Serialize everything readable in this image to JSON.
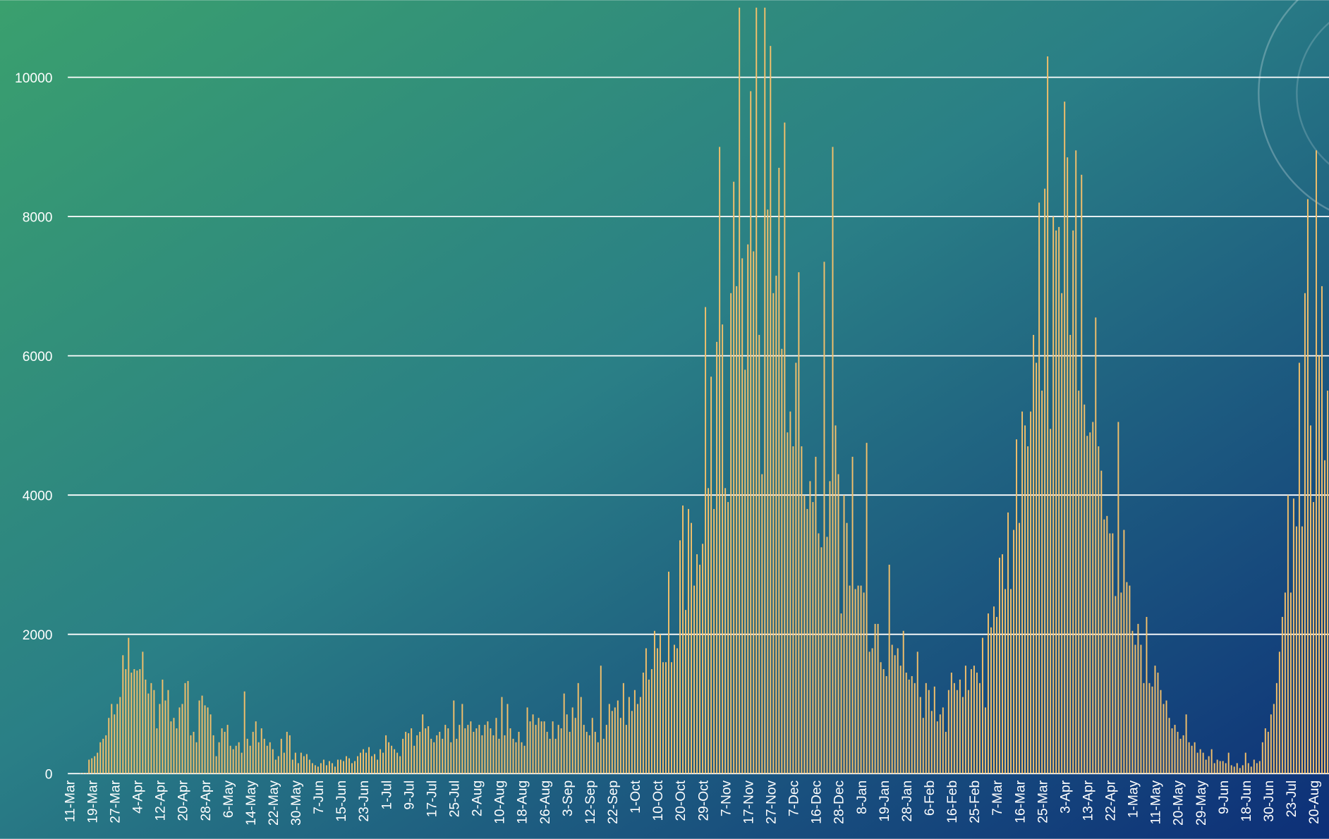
{
  "chart_data": {
    "type": "bar",
    "color": "#f4c06a",
    "grid": true,
    "ylim": [
      0,
      11100
    ],
    "yticks": [
      0,
      2000,
      4000,
      6000,
      8000,
      10000
    ],
    "categories": [
      "11-Mar",
      null,
      null,
      null,
      null,
      null,
      null,
      null,
      "19-Mar",
      null,
      null,
      null,
      null,
      null,
      null,
      null,
      "27-Mar",
      null,
      null,
      null,
      null,
      null,
      null,
      null,
      "4-Apr",
      null,
      null,
      null,
      null,
      null,
      null,
      null,
      "12-Apr",
      null,
      null,
      null,
      null,
      null,
      null,
      null,
      "20-Apr",
      null,
      null,
      null,
      null,
      null,
      null,
      null,
      "28-Apr",
      null,
      null,
      null,
      null,
      null,
      null,
      null,
      "6-May",
      null,
      null,
      null,
      null,
      null,
      null,
      null,
      "14-May",
      null,
      null,
      null,
      null,
      null,
      null,
      null,
      "22-May",
      null,
      null,
      null,
      null,
      null,
      null,
      null,
      "30-May",
      null,
      null,
      null,
      null,
      null,
      null,
      null,
      "7-Jun",
      null,
      null,
      null,
      null,
      null,
      null,
      null,
      "15-Jun",
      null,
      null,
      null,
      null,
      null,
      null,
      null,
      "23-Jun",
      null,
      null,
      null,
      null,
      null,
      null,
      null,
      "1-Jul",
      null,
      null,
      null,
      null,
      null,
      null,
      null,
      "9-Jul",
      null,
      null,
      null,
      null,
      null,
      null,
      null,
      "17-Jul",
      null,
      null,
      null,
      null,
      null,
      null,
      null,
      "25-Jul",
      null,
      null,
      null,
      null,
      null,
      null,
      null,
      "2-Aug",
      null,
      null,
      null,
      null,
      null,
      null,
      null,
      "10-Aug",
      null,
      null,
      null,
      null,
      null,
      null,
      null,
      "18-Aug",
      null,
      null,
      null,
      null,
      null,
      null,
      null,
      "26-Aug",
      null,
      null,
      null,
      null,
      null,
      null,
      null,
      "3-Sep",
      null,
      null,
      null,
      null,
      null,
      null,
      null,
      "12-Sep",
      null,
      null,
      null,
      null,
      null,
      null,
      null,
      "22-Sep",
      null,
      null,
      null,
      null,
      null,
      null,
      null,
      "1-Oct",
      null,
      null,
      null,
      null,
      null,
      null,
      null,
      "10-Oct",
      null,
      null,
      null,
      null,
      null,
      null,
      null,
      "20-Oct",
      null,
      null,
      null,
      null,
      null,
      null,
      null,
      "29-Oct",
      null,
      null,
      null,
      null,
      null,
      null,
      null,
      "7-Nov",
      null,
      null,
      null,
      null,
      null,
      null,
      null,
      "17-Nov",
      null,
      null,
      null,
      null,
      null,
      null,
      null,
      "27-Nov",
      null,
      null,
      null,
      null,
      null,
      null,
      null,
      "7-Dec",
      null,
      null,
      null,
      null,
      null,
      null,
      null,
      "16-Dec",
      null,
      null,
      null,
      null,
      null,
      null,
      null,
      "28-Dec",
      null,
      null,
      null,
      null,
      null,
      null,
      null,
      "8-Jan",
      null,
      null,
      null,
      null,
      null,
      null,
      null,
      "19-Jan",
      null,
      null,
      null,
      null,
      null,
      null,
      null,
      "28-Jan",
      null,
      null,
      null,
      null,
      null,
      null,
      null,
      "6-Feb",
      null,
      null,
      null,
      null,
      null,
      null,
      null,
      "16-Feb",
      null,
      null,
      null,
      null,
      null,
      null,
      null,
      "25-Feb",
      null,
      null,
      null,
      null,
      null,
      null,
      null,
      "7-Mar",
      null,
      null,
      null,
      null,
      null,
      null,
      null,
      "16-Mar",
      null,
      null,
      null,
      null,
      null,
      null,
      null,
      "25-Mar",
      null,
      null,
      null,
      null,
      null,
      null,
      null,
      "3-Apr",
      null,
      null,
      null,
      null,
      null,
      null,
      null,
      "13-Apr",
      null,
      null,
      null,
      null,
      null,
      null,
      null,
      "22-Apr",
      null,
      null,
      null,
      null,
      null,
      null,
      null,
      "1-May",
      null,
      null,
      null,
      null,
      null,
      null,
      null,
      "11-May",
      null,
      null,
      null,
      null,
      null,
      null,
      null,
      "20-May",
      null,
      null,
      null,
      null,
      null,
      null,
      null,
      "29-May",
      null,
      null,
      null,
      null,
      null,
      null,
      null,
      "9-Jun",
      null,
      null,
      null,
      null,
      null,
      null,
      null,
      "18-Jun",
      null,
      null,
      null,
      null,
      null,
      null,
      null,
      "30-Jun",
      null,
      null,
      null,
      null,
      null,
      null,
      null,
      "23-Jul",
      null,
      null,
      null,
      null,
      null,
      null,
      null,
      "20-Aug",
      null,
      null,
      null,
      null,
      null
    ],
    "values": [
      0,
      0,
      0,
      0,
      5,
      10,
      10,
      200,
      220,
      250,
      300,
      450,
      500,
      550,
      800,
      1000,
      850,
      1000,
      1100,
      1700,
      1500,
      1950,
      1450,
      1500,
      1480,
      1500,
      1750,
      1350,
      1150,
      1300,
      1200,
      650,
      1000,
      1350,
      1050,
      1200,
      750,
      800,
      650,
      950,
      1000,
      1300,
      1330,
      550,
      600,
      450,
      1050,
      1120,
      980,
      950,
      850,
      550,
      250,
      450,
      650,
      600,
      700,
      400,
      350,
      400,
      450,
      300,
      1180,
      500,
      400,
      600,
      750,
      450,
      650,
      500,
      400,
      450,
      350,
      200,
      250,
      500,
      300,
      600,
      550,
      200,
      300,
      150,
      300,
      250,
      280,
      200,
      150,
      120,
      100,
      150,
      200,
      120,
      180,
      150,
      100,
      200,
      200,
      180,
      250,
      220,
      150,
      180,
      250,
      300,
      350,
      300,
      380,
      250,
      280,
      200,
      350,
      300,
      550,
      450,
      400,
      350,
      300,
      250,
      500,
      600,
      580,
      650,
      400,
      550,
      600,
      850,
      650,
      680,
      500,
      450,
      550,
      600,
      500,
      700,
      650,
      450,
      1050,
      500,
      700,
      1000,
      650,
      700,
      750,
      600,
      650,
      700,
      550,
      700,
      750,
      650,
      550,
      800,
      500,
      1100,
      550,
      1000,
      650,
      500,
      450,
      600,
      450,
      400,
      950,
      750,
      850,
      700,
      800,
      750,
      750,
      600,
      500,
      750,
      500,
      700,
      650,
      1150,
      850,
      600,
      950,
      800,
      1300,
      1100,
      700,
      600,
      550,
      800,
      600,
      450,
      1550,
      500,
      700,
      1000,
      900,
      950,
      1050,
      800,
      1300,
      700,
      1100,
      900,
      1200,
      1000,
      1100,
      1450,
      1800,
      1350,
      1500,
      2050,
      1800,
      2000,
      1600,
      1600,
      2900,
      1600,
      1850,
      1800,
      3350,
      3850,
      2350,
      3800,
      3600,
      2700,
      3150,
      3000,
      3300,
      6700,
      4100,
      5700,
      3800,
      6200,
      9000,
      6450,
      4100,
      3900,
      6900,
      8500,
      7000,
      11000,
      7400,
      5800,
      7600,
      9800,
      7500,
      11000,
      6300,
      4300,
      11000,
      8100,
      10450,
      6900,
      7150,
      8700,
      6100,
      9350,
      4900,
      5200,
      4700,
      5900,
      7200,
      4700,
      4000,
      3800,
      4200,
      3900,
      4550,
      3450,
      3250,
      7350,
      3400,
      4200,
      9000,
      5000,
      4300,
      2300,
      4000,
      3600,
      2700,
      4550,
      2650,
      2700,
      2700,
      2600,
      4750,
      1750,
      1800,
      2150,
      2150,
      1600,
      1500,
      1400,
      3000,
      1850,
      1700,
      1800,
      1550,
      2050,
      1450,
      1350,
      1400,
      1300,
      1750,
      1100,
      800,
      1300,
      1200,
      900,
      1250,
      750,
      850,
      950,
      600,
      1200,
      1450,
      1300,
      1200,
      1350,
      1100,
      1550,
      1200,
      1500,
      1550,
      1450,
      1300,
      1950,
      950,
      2300,
      2100,
      2400,
      2250,
      3100,
      3150,
      2650,
      3750,
      2650,
      3500,
      4800,
      3600,
      5200,
      5000,
      4700,
      5200,
      6300,
      5900,
      8200,
      5500,
      8400,
      10300,
      4950,
      8000,
      7800,
      7850,
      6900,
      9650,
      8850,
      6300,
      7800,
      8950,
      5500,
      8600,
      5300,
      4850,
      4900,
      5050,
      6550,
      4700,
      4350,
      3650,
      3700,
      3450,
      3450,
      2550,
      5050,
      2600,
      3500,
      2750,
      2700,
      2050,
      1850,
      2150,
      1850,
      1300,
      2250,
      1300,
      1250,
      1550,
      1450,
      1200,
      1000,
      1050,
      800,
      650,
      700,
      600,
      500,
      550,
      850,
      450,
      400,
      450,
      300,
      350,
      300,
      200,
      250,
      350,
      150,
      200,
      180,
      180,
      150,
      300,
      120,
      100,
      150,
      80,
      120,
      300,
      150,
      100,
      200,
      150,
      180,
      450,
      650,
      600,
      850,
      1000,
      1300,
      1750,
      2250,
      2600,
      4000,
      2600,
      3950,
      3550,
      5900,
      3550,
      6900,
      8250,
      5000,
      3900,
      8950,
      6000,
      7000,
      4500,
      5500
    ]
  }
}
